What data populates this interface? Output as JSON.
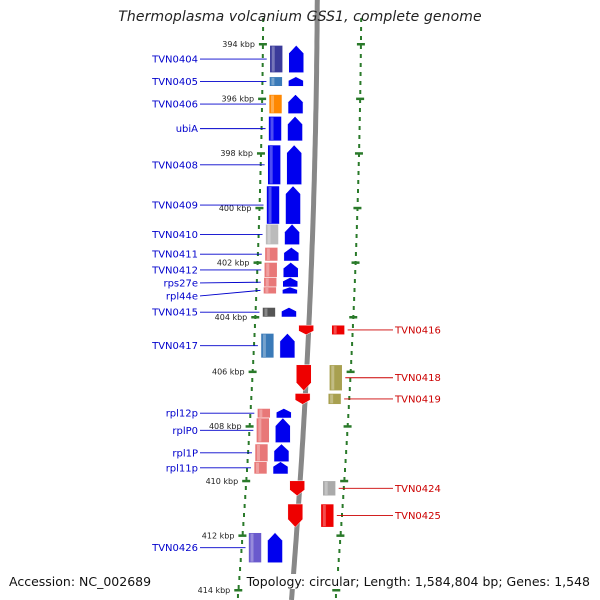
{
  "title": "Thermoplasma volcanium GSS1, complete genome",
  "footer": {
    "accession": "Accession: NC_002689",
    "summary": "Topology: circular; Length: 1,584,804 bp; Genes: 1,548"
  },
  "colors": {
    "left_label": "#0000cc",
    "right_label": "#cc0000",
    "backbone": "#888888",
    "ring_dots": "#2a7a2a"
  },
  "scale": {
    "unit": "kbp",
    "ticks": [
      {
        "label": "394 kbp",
        "kbp": 394
      },
      {
        "label": "396 kbp",
        "kbp": 396
      },
      {
        "label": "398 kbp",
        "kbp": 398
      },
      {
        "label": "400 kbp",
        "kbp": 400
      },
      {
        "label": "402 kbp",
        "kbp": 402
      },
      {
        "label": "404 kbp",
        "kbp": 404
      },
      {
        "label": "406 kbp",
        "kbp": 406
      },
      {
        "label": "408 kbp",
        "kbp": 408
      },
      {
        "label": "410 kbp",
        "kbp": 410
      },
      {
        "label": "412 kbp",
        "kbp": 412
      },
      {
        "label": "414 kbp",
        "kbp": 414
      }
    ]
  },
  "genes": [
    {
      "id": "TVN0404",
      "strand": "+",
      "start_kbp": 394.05,
      "end_kbp": 395.05,
      "color": "#3a3a9a"
    },
    {
      "id": "TVN0405",
      "strand": "+",
      "start_kbp": 395.2,
      "end_kbp": 395.55,
      "color": "#3a7ab8"
    },
    {
      "id": "TVN0406",
      "strand": "+",
      "start_kbp": 395.85,
      "end_kbp": 396.55,
      "color": "#ff8800"
    },
    {
      "id": "ubiA",
      "strand": "+",
      "start_kbp": 396.65,
      "end_kbp": 397.55,
      "color": "#0000ee"
    },
    {
      "id": "TVN0408",
      "strand": "+",
      "start_kbp": 397.7,
      "end_kbp": 399.15,
      "color": "#0000ee"
    },
    {
      "id": "TVN0409",
      "strand": "+",
      "start_kbp": 399.2,
      "end_kbp": 400.6,
      "color": "#0000ee"
    },
    {
      "id": "TVN0410",
      "strand": "+",
      "start_kbp": 400.6,
      "end_kbp": 401.35,
      "color": "#bbbbbb"
    },
    {
      "id": "TVN0411",
      "strand": "+",
      "start_kbp": 401.45,
      "end_kbp": 401.95,
      "color": "#e87878"
    },
    {
      "id": "TVN0412",
      "strand": "+",
      "start_kbp": 402.0,
      "end_kbp": 402.55,
      "color": "#e87878"
    },
    {
      "id": "rps27e",
      "strand": "+",
      "start_kbp": 402.55,
      "end_kbp": 402.9,
      "color": "#e87878"
    },
    {
      "id": "rpl44e",
      "strand": "+",
      "start_kbp": 402.9,
      "end_kbp": 403.15,
      "color": "#e87878"
    },
    {
      "id": "TVN0415",
      "strand": "+",
      "start_kbp": 403.65,
      "end_kbp": 404.0,
      "color": "#555555"
    },
    {
      "id": "TVN0416",
      "strand": "-",
      "start_kbp": 404.3,
      "end_kbp": 404.65,
      "color": "#ee0000"
    },
    {
      "id": "TVN0417",
      "strand": "+",
      "start_kbp": 404.6,
      "end_kbp": 405.5,
      "color": "#3a7ab8"
    },
    {
      "id": "TVN0418",
      "strand": "-",
      "start_kbp": 405.75,
      "end_kbp": 406.7,
      "color": "#a8a050"
    },
    {
      "id": "TVN0419",
      "strand": "-",
      "start_kbp": 406.8,
      "end_kbp": 407.2,
      "color": "#a8a050"
    },
    {
      "id": "rpl12p",
      "strand": "+",
      "start_kbp": 407.35,
      "end_kbp": 407.7,
      "color": "#e87878"
    },
    {
      "id": "rplP0",
      "strand": "+",
      "start_kbp": 407.7,
      "end_kbp": 408.6,
      "color": "#e87878"
    },
    {
      "id": "rpl1P",
      "strand": "+",
      "start_kbp": 408.65,
      "end_kbp": 409.3,
      "color": "#e87878"
    },
    {
      "id": "rpl11p",
      "strand": "+",
      "start_kbp": 409.3,
      "end_kbp": 409.75,
      "color": "#e87878"
    },
    {
      "id": "TVN0424",
      "strand": "-",
      "start_kbp": 410.0,
      "end_kbp": 410.55,
      "color": "#aaaaaa"
    },
    {
      "id": "TVN0425",
      "strand": "-",
      "start_kbp": 410.85,
      "end_kbp": 411.7,
      "color": "#ee0000"
    },
    {
      "id": "TVN0426",
      "strand": "+",
      "start_kbp": 411.9,
      "end_kbp": 413.0,
      "color": "#6a5acd"
    }
  ]
}
